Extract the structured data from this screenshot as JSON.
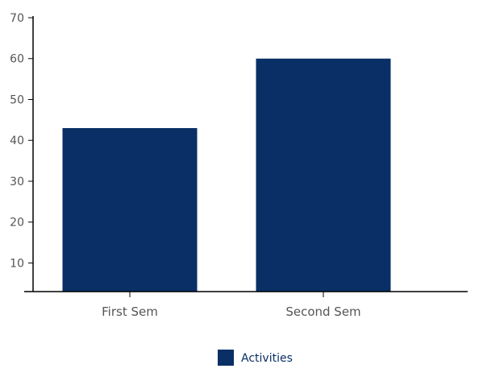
{
  "chart_data": {
    "type": "bar",
    "categories": [
      "First Sem",
      "Second Sem"
    ],
    "series": [
      {
        "name": "Activities",
        "values": [
          43,
          60
        ],
        "color": "#0a2f66"
      }
    ],
    "title": "",
    "xlabel": "",
    "ylabel": "",
    "ylim": [
      3,
      70
    ],
    "yticks": [
      10,
      20,
      30,
      40,
      50,
      60,
      70
    ],
    "grid": false,
    "legend_position": "bottom-center"
  }
}
